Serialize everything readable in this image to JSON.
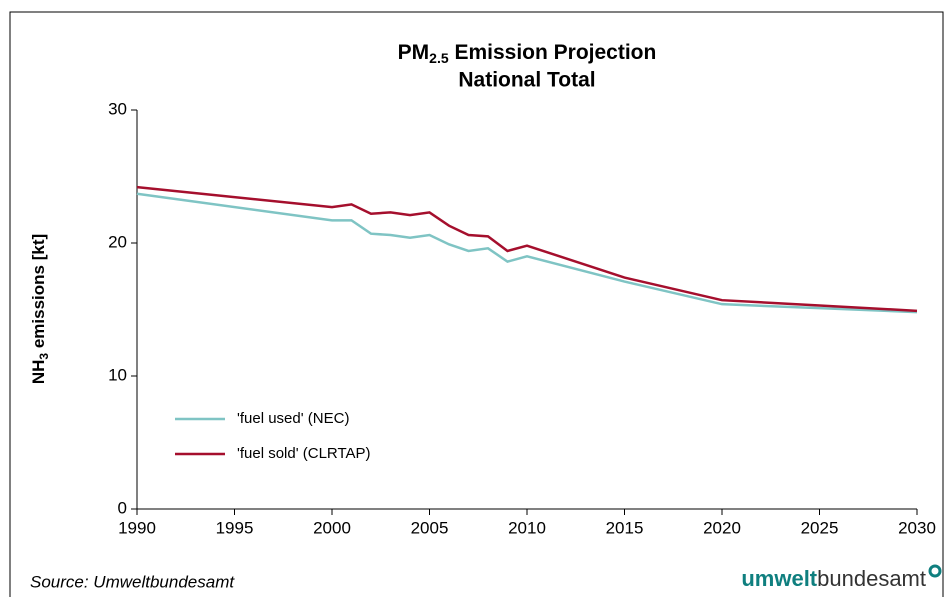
{
  "chart_data": {
    "type": "line",
    "title": [
      "PM",
      "2.5",
      " Emission Projection"
    ],
    "subtitle": "National Total",
    "y_label": [
      "NH",
      "3",
      " emissions [kt]"
    ],
    "x": [
      1990,
      2000,
      2001,
      2002,
      2003,
      2004,
      2005,
      2006,
      2007,
      2008,
      2009,
      2010,
      2015,
      2020,
      2025,
      2030
    ],
    "series": [
      {
        "name": "'fuel used' (NEC)",
        "color": "#7fc4c4",
        "values": [
          23.7,
          21.7,
          21.7,
          20.7,
          20.6,
          20.4,
          20.6,
          19.9,
          19.4,
          19.6,
          18.6,
          19.0,
          17.1,
          15.4,
          15.1,
          14.8
        ]
      },
      {
        "name": "'fuel sold' (CLRTAP)",
        "color": "#a50f2d",
        "values": [
          24.2,
          22.7,
          22.9,
          22.2,
          22.3,
          22.1,
          22.3,
          21.3,
          20.6,
          20.5,
          19.4,
          19.8,
          17.4,
          15.7,
          15.3,
          14.9
        ]
      }
    ],
    "xlim": [
      1990,
      2030
    ],
    "xticks": [
      1990,
      1995,
      2000,
      2005,
      2010,
      2015,
      2020,
      2025,
      2030
    ],
    "ylim": [
      0,
      30
    ],
    "yticks": [
      0,
      10,
      20,
      30
    ],
    "grid": false,
    "legend": "lower left",
    "source": "Source: Umweltbundesamt",
    "logo": [
      "umwelt",
      "bundesamt"
    ]
  }
}
